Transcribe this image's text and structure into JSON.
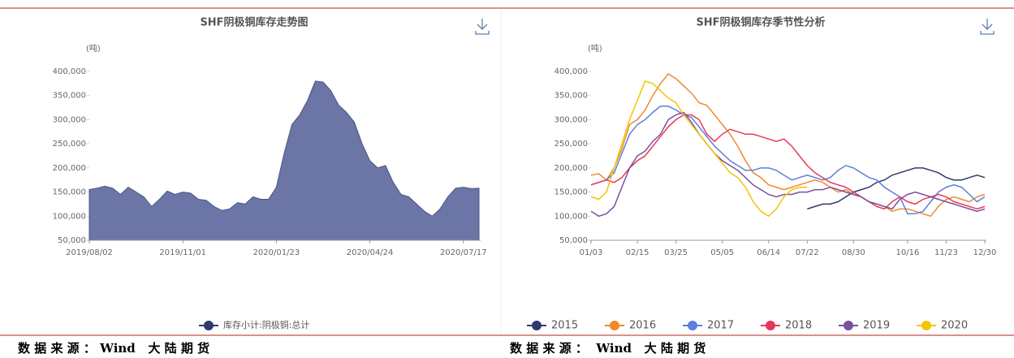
{
  "chart_data": [
    {
      "type": "area",
      "title": "SHF阴极铜库存走势图",
      "y_label": "(吨)",
      "legend": "bottom",
      "categories": [
        "2019/08/02",
        null,
        null,
        null,
        null,
        null,
        null,
        null,
        null,
        null,
        null,
        null,
        "2019/11/01",
        null,
        null,
        null,
        null,
        null,
        null,
        null,
        null,
        null,
        null,
        null,
        "2020/01/23",
        null,
        null,
        null,
        null,
        null,
        null,
        null,
        null,
        null,
        null,
        null,
        "2020/04/24",
        null,
        null,
        null,
        null,
        null,
        null,
        null,
        null,
        null,
        null,
        null,
        "2020/07/17",
        null,
        null
      ],
      "series": [
        {
          "name": "库存小计:阴极铜:总计",
          "color": "#6b76a6",
          "values": [
            155000,
            158000,
            162000,
            158000,
            145000,
            160000,
            150000,
            140000,
            120000,
            135000,
            152000,
            145000,
            150000,
            148000,
            135000,
            133000,
            120000,
            112000,
            115000,
            128000,
            125000,
            140000,
            135000,
            135000,
            160000,
            230000,
            290000,
            310000,
            340000,
            380000,
            378000,
            360000,
            330000,
            315000,
            295000,
            250000,
            215000,
            200000,
            205000,
            170000,
            145000,
            140000,
            125000,
            110000,
            100000,
            115000,
            140000,
            158000,
            160000,
            157000,
            158000
          ]
        }
      ],
      "ylim": [
        50000,
        400000
      ],
      "yticks": [
        {
          "value": 50000,
          "label": "50,000"
        },
        {
          "value": 100000,
          "label": "100,000"
        },
        {
          "value": 150000,
          "label": "150,000"
        },
        {
          "value": 200000,
          "label": "200,000"
        },
        {
          "value": 250000,
          "label": "250,000"
        },
        {
          "value": 300000,
          "label": "300,000"
        },
        {
          "value": 350000,
          "label": "350,000"
        },
        {
          "value": 400000,
          "label": "400,000"
        }
      ]
    },
    {
      "type": "line",
      "title": "SHF阴极铜库存季节性分析",
      "y_label": "(吨)",
      "legend": "bottom",
      "categories": [
        "01/03",
        null,
        null,
        null,
        null,
        null,
        "02/15",
        null,
        null,
        null,
        null,
        "03/25",
        null,
        null,
        null,
        null,
        null,
        "05/05",
        null,
        null,
        null,
        null,
        null,
        "06/14",
        null,
        null,
        null,
        null,
        "07/22",
        null,
        null,
        null,
        null,
        null,
        "08/30",
        null,
        null,
        null,
        null,
        null,
        null,
        "10/16",
        null,
        null,
        null,
        null,
        "11/23",
        null,
        null,
        null,
        null,
        "12/30"
      ],
      "series": [
        {
          "name": "2015",
          "color": "#2d3a6e",
          "values": [
            null,
            null,
            null,
            null,
            null,
            null,
            null,
            null,
            null,
            null,
            null,
            null,
            null,
            null,
            null,
            null,
            null,
            null,
            null,
            null,
            null,
            null,
            null,
            null,
            null,
            null,
            null,
            null,
            115000,
            120000,
            125000,
            125000,
            130000,
            140000,
            150000,
            155000,
            160000,
            170000,
            175000,
            185000,
            190000,
            195000,
            200000,
            200000,
            195000,
            190000,
            180000,
            175000,
            175000,
            180000,
            185000,
            180000
          ]
        },
        {
          "name": "2016",
          "color": "#f08a2c",
          "values": [
            185000,
            188000,
            175000,
            200000,
            240000,
            290000,
            300000,
            320000,
            350000,
            375000,
            395000,
            385000,
            370000,
            355000,
            335000,
            330000,
            310000,
            290000,
            270000,
            245000,
            215000,
            190000,
            180000,
            165000,
            160000,
            155000,
            160000,
            165000,
            170000,
            175000,
            170000,
            160000,
            150000,
            155000,
            145000,
            140000,
            130000,
            125000,
            120000,
            110000,
            115000,
            115000,
            110000,
            105000,
            100000,
            120000,
            135000,
            140000,
            135000,
            130000,
            140000,
            145000
          ]
        },
        {
          "name": "2017",
          "color": "#5b7fdb",
          "values": [
            165000,
            170000,
            175000,
            190000,
            230000,
            270000,
            290000,
            300000,
            315000,
            328000,
            328000,
            320000,
            310000,
            305000,
            285000,
            265000,
            245000,
            230000,
            215000,
            205000,
            195000,
            195000,
            200000,
            200000,
            195000,
            185000,
            175000,
            180000,
            185000,
            180000,
            175000,
            180000,
            195000,
            205000,
            200000,
            190000,
            180000,
            175000,
            160000,
            150000,
            140000,
            105000,
            105000,
            110000,
            130000,
            150000,
            160000,
            165000,
            160000,
            145000,
            130000,
            140000
          ]
        },
        {
          "name": "2018",
          "color": "#e8385a",
          "values": [
            165000,
            170000,
            175000,
            170000,
            180000,
            200000,
            215000,
            225000,
            245000,
            265000,
            285000,
            300000,
            310000,
            310000,
            300000,
            270000,
            255000,
            270000,
            280000,
            275000,
            270000,
            270000,
            265000,
            260000,
            255000,
            260000,
            245000,
            225000,
            205000,
            190000,
            180000,
            170000,
            165000,
            160000,
            150000,
            140000,
            130000,
            120000,
            115000,
            130000,
            140000,
            130000,
            125000,
            135000,
            140000,
            145000,
            140000,
            130000,
            125000,
            120000,
            115000,
            120000
          ]
        },
        {
          "name": "2019",
          "color": "#7b4f9e",
          "values": [
            110000,
            100000,
            105000,
            120000,
            160000,
            200000,
            225000,
            235000,
            255000,
            270000,
            300000,
            310000,
            315000,
            295000,
            270000,
            250000,
            230000,
            215000,
            205000,
            195000,
            180000,
            165000,
            155000,
            145000,
            140000,
            145000,
            145000,
            150000,
            150000,
            155000,
            155000,
            160000,
            155000,
            150000,
            145000,
            140000,
            130000,
            125000,
            120000,
            115000,
            135000,
            145000,
            150000,
            145000,
            140000,
            135000,
            130000,
            125000,
            120000,
            115000,
            110000,
            115000
          ]
        },
        {
          "name": "2020",
          "color": "#f5c400",
          "values": [
            140000,
            135000,
            150000,
            200000,
            250000,
            300000,
            340000,
            380000,
            375000,
            360000,
            345000,
            335000,
            310000,
            290000,
            270000,
            250000,
            230000,
            210000,
            190000,
            180000,
            160000,
            130000,
            110000,
            100000,
            115000,
            140000,
            155000,
            160000,
            160000,
            null,
            null,
            null,
            null,
            null,
            null,
            null,
            null,
            null,
            null,
            null,
            null,
            null,
            null,
            null,
            null,
            null,
            null,
            null,
            null,
            null,
            null,
            null
          ]
        }
      ],
      "ylim": [
        50000,
        400000
      ],
      "yticks": [
        {
          "value": 50000,
          "label": "50,000"
        },
        {
          "value": 100000,
          "label": "100,000"
        },
        {
          "value": 150000,
          "label": "150,000"
        },
        {
          "value": 200000,
          "label": "200,000"
        },
        {
          "value": 250000,
          "label": "250,000"
        },
        {
          "value": 300000,
          "label": "300,000"
        },
        {
          "value": 350000,
          "label": "350,000"
        },
        {
          "value": 400000,
          "label": "400,000"
        }
      ]
    }
  ],
  "footer": {
    "left": "数 据 来 源 ： Wind   大 陆 期 货",
    "right": "数 据 来 源 ：  Wind   大 陆 期 货"
  }
}
